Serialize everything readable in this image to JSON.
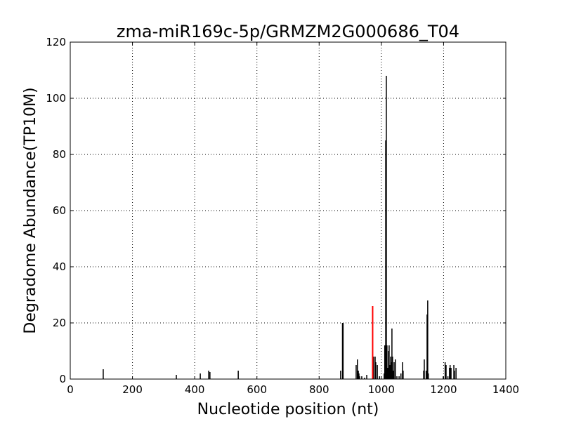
{
  "chart_data": {
    "type": "bar",
    "title": "zma-miR169c-5p/GRMZM2G000686_T04",
    "xlabel": "Nucleotide position (nt)",
    "ylabel": "Degradome Abundance(TP10M)",
    "xlim": [
      0,
      1400
    ],
    "ylim": [
      0,
      120
    ],
    "xticks": [
      0,
      200,
      400,
      600,
      800,
      1000,
      1200,
      1400
    ],
    "yticks": [
      0,
      20,
      40,
      60,
      80,
      100,
      120
    ],
    "grid": true,
    "colors": {
      "bars": "#000000",
      "highlight": "#ff0000"
    },
    "highlight": {
      "x": 972,
      "y": 26
    },
    "x": [
      106,
      341,
      418,
      445,
      449,
      540,
      869,
      875,
      877,
      919,
      923,
      926,
      928,
      930,
      937,
      946,
      953,
      975,
      980,
      982,
      987,
      994,
      1009,
      1011,
      1014,
      1016,
      1018,
      1021,
      1023,
      1025,
      1028,
      1030,
      1032,
      1034,
      1036,
      1039,
      1041,
      1045,
      1050,
      1057,
      1063,
      1068,
      1070,
      1136,
      1138,
      1144,
      1147,
      1149,
      1151,
      1199,
      1205,
      1208,
      1214,
      1219,
      1221,
      1224,
      1233,
      1235,
      1240
    ],
    "values": [
      3.5,
      1.5,
      2,
      3,
      2.5,
      3,
      3,
      20,
      20,
      5,
      7,
      3,
      2,
      1,
      1,
      0.5,
      1.5,
      8,
      8,
      6,
      5,
      1,
      2,
      12,
      85,
      108,
      12,
      4,
      10,
      12,
      5,
      8,
      6,
      18,
      8,
      3,
      6,
      7,
      1,
      1,
      2,
      6,
      3,
      3,
      7,
      3,
      23,
      28,
      2,
      1,
      6,
      5,
      1,
      4,
      5,
      4,
      5,
      3,
      4
    ]
  }
}
